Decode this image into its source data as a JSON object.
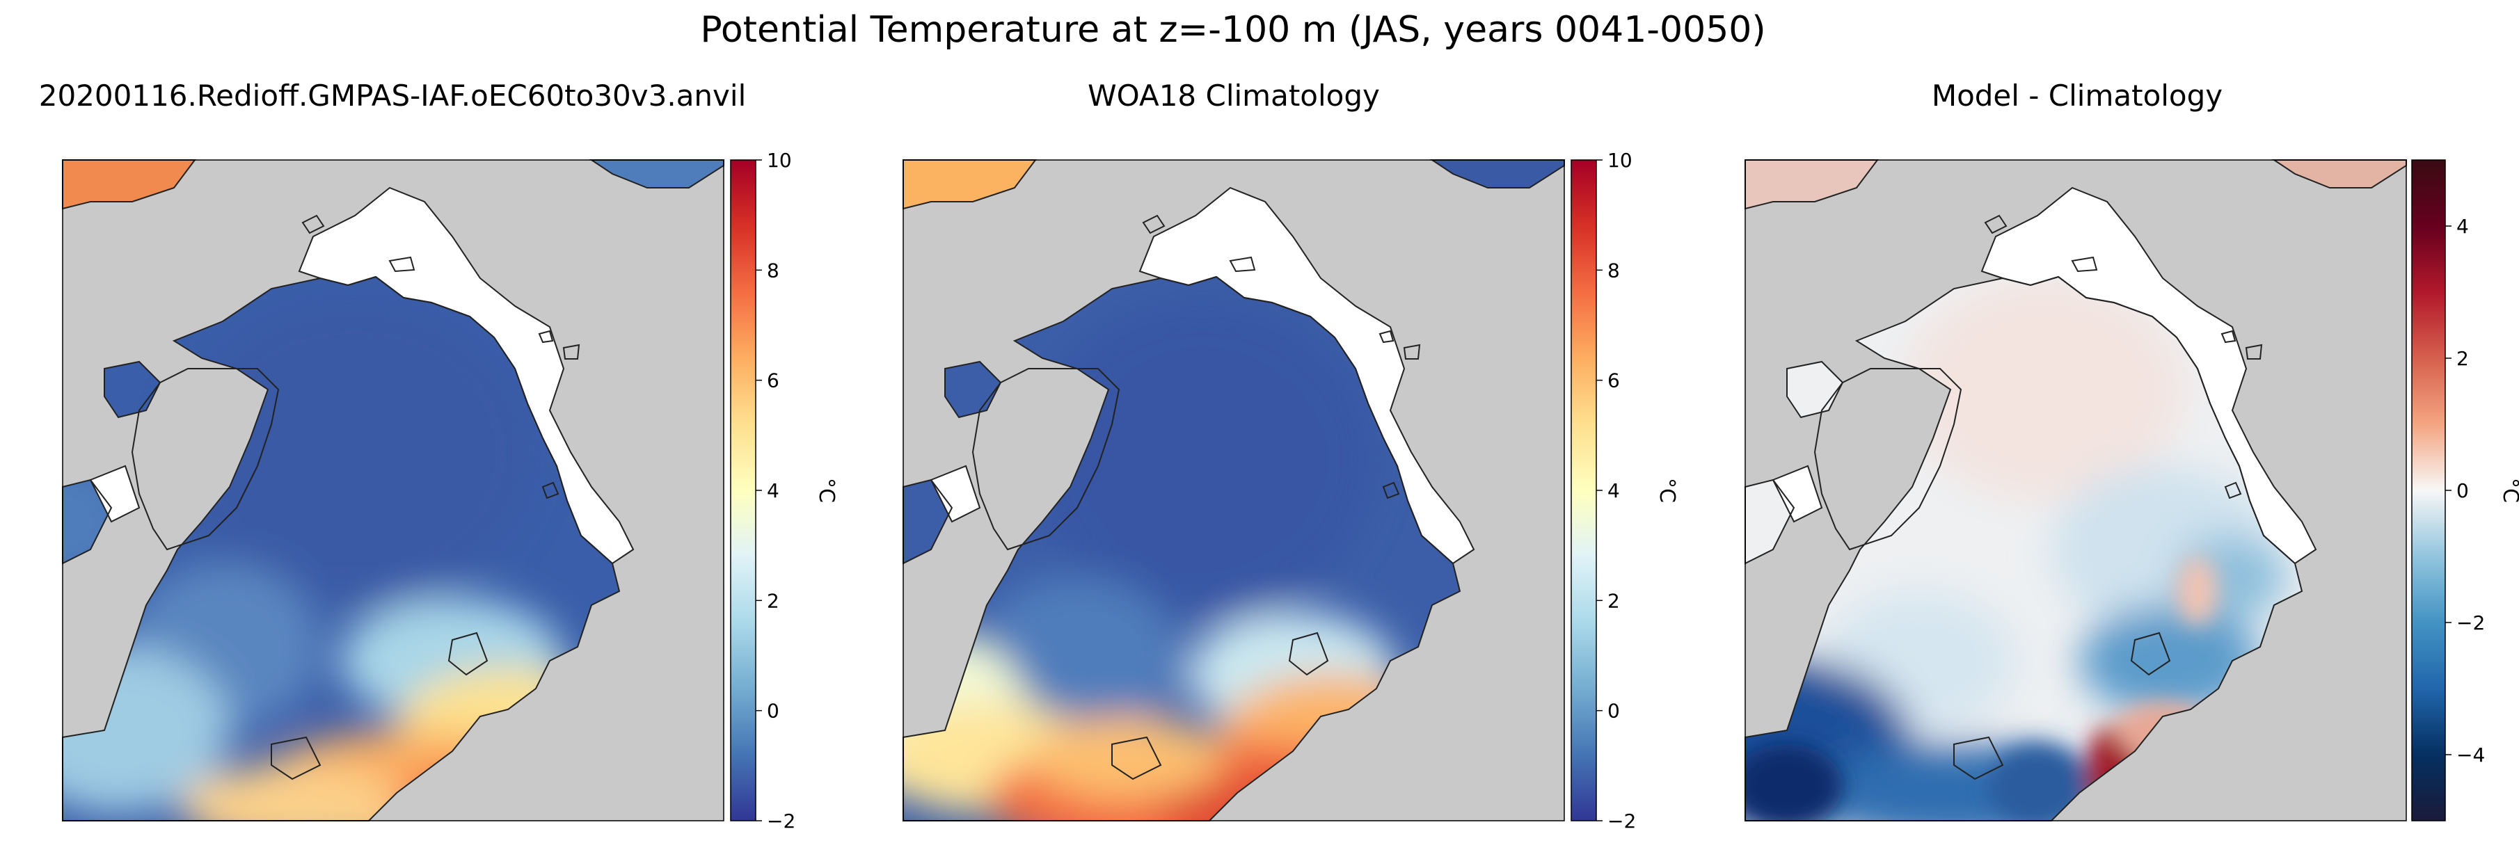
{
  "suptitle": "Potential Temperature at z=-100 m (JAS, years 0041-0050)",
  "panels": [
    {
      "title": "20200116.Redioff.GMPAS-IAF.oEC60to30v3.anvil",
      "colorbar": {
        "label": "°C",
        "cmap": "RdYlBu_r",
        "ticks": [
          "−2",
          "0",
          "2",
          "4",
          "6",
          "8",
          "10"
        ],
        "colors": [
          "#313695",
          "#4575b4",
          "#74add1",
          "#abd9e9",
          "#e0f3f8",
          "#ffffbf",
          "#fee090",
          "#fdae61",
          "#f46d43",
          "#d73027",
          "#a50026"
        ]
      }
    },
    {
      "title": "WOA18 Climatology",
      "colorbar": {
        "label": "°C",
        "cmap": "RdYlBu_r",
        "ticks": [
          "−2",
          "0",
          "2",
          "4",
          "6",
          "8",
          "10"
        ],
        "colors": [
          "#313695",
          "#4575b4",
          "#74add1",
          "#abd9e9",
          "#e0f3f8",
          "#ffffbf",
          "#fee090",
          "#fdae61",
          "#f46d43",
          "#d73027",
          "#a50026"
        ]
      }
    },
    {
      "title": "Model - Climatology",
      "colorbar": {
        "label": "°C",
        "cmap": "RdBu_r",
        "ticks": [
          "−4",
          "−2",
          "0",
          "2",
          "4"
        ],
        "colors": [
          "#1b1a3a",
          "#053061",
          "#2166ac",
          "#4393c3",
          "#92c5de",
          "#f7f7f7",
          "#f4a582",
          "#d6604d",
          "#b2182b",
          "#67001f",
          "#3a0a12"
        ]
      }
    }
  ],
  "colors": {
    "land": "#c9c9c9",
    "no_data": "#ffffff",
    "coast_line": "#222222"
  }
}
